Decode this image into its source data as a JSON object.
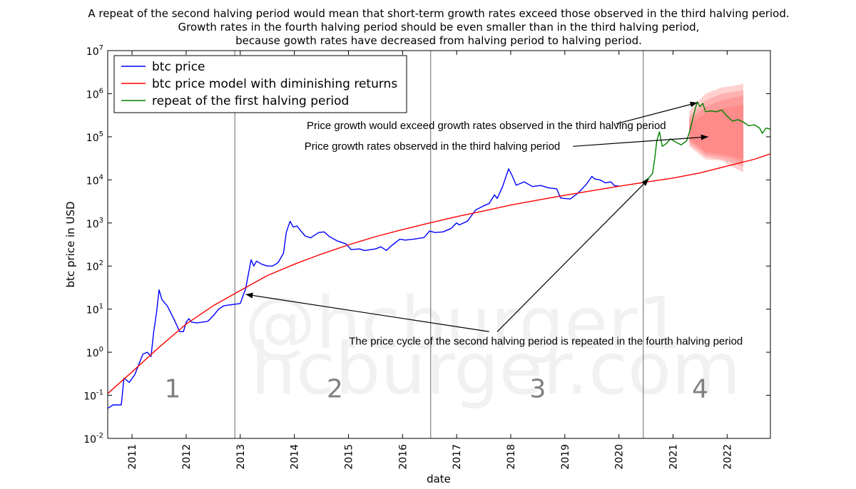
{
  "chart_data": {
    "type": "line",
    "title_lines": [
      "A repeat of the second halving period would mean that short-term growth rates exceed those observed in the third halving period.",
      "Growth rates in the fourth halving period should be even smaller than in the third halving period,",
      "because gowth rates have decreased from halving period to halving period."
    ],
    "xlabel": "date",
    "ylabel": "btc price in USD",
    "xlim": [
      2010.55,
      2022.8
    ],
    "y_scale": "log",
    "ylim_log10": [
      -2,
      7
    ],
    "x_ticks": [
      2011,
      2012,
      2013,
      2014,
      2015,
      2016,
      2017,
      2018,
      2019,
      2020,
      2021,
      2022
    ],
    "y_ticks": [
      {
        "exp": -2,
        "base": "10",
        "sup": "-2"
      },
      {
        "exp": -1,
        "base": "10",
        "sup": "-1"
      },
      {
        "exp": 0,
        "base": "10",
        "sup": "0"
      },
      {
        "exp": 1,
        "base": "10",
        "sup": "1"
      },
      {
        "exp": 2,
        "base": "10",
        "sup": "2"
      },
      {
        "exp": 3,
        "base": "10",
        "sup": "3"
      },
      {
        "exp": 4,
        "base": "10",
        "sup": "4"
      },
      {
        "exp": 5,
        "base": "10",
        "sup": "5"
      },
      {
        "exp": 6,
        "base": "10",
        "sup": "6"
      },
      {
        "exp": 7,
        "base": "10",
        "sup": "7"
      }
    ],
    "legend": [
      {
        "label": "btc price",
        "color": "#0000ff"
      },
      {
        "label": "btc price model with diminishing returns",
        "color": "#ff0000"
      },
      {
        "label": "repeat of the first halving period",
        "color": "#008000"
      }
    ],
    "legend_position": "top-left",
    "halving_lines": [
      2012.9,
      2016.52,
      2020.45
    ],
    "period_labels": [
      {
        "text": "1",
        "x": 2011.75
      },
      {
        "text": "2",
        "x": 2014.75
      },
      {
        "text": "3",
        "x": 2018.5
      },
      {
        "text": "4",
        "x": 2021.5
      }
    ],
    "period_label_y": 0.09,
    "series": [
      {
        "name": "btc price",
        "color": "#0000ff",
        "points": [
          [
            2010.55,
            0.05
          ],
          [
            2010.65,
            0.06
          ],
          [
            2010.8,
            0.06
          ],
          [
            2010.85,
            0.25
          ],
          [
            2010.95,
            0.2
          ],
          [
            2011.05,
            0.3
          ],
          [
            2011.12,
            0.5
          ],
          [
            2011.2,
            0.9
          ],
          [
            2011.28,
            1.0
          ],
          [
            2011.35,
            0.8
          ],
          [
            2011.4,
            3
          ],
          [
            2011.45,
            8
          ],
          [
            2011.5,
            28
          ],
          [
            2011.55,
            17
          ],
          [
            2011.6,
            14
          ],
          [
            2011.65,
            12
          ],
          [
            2011.72,
            8
          ],
          [
            2011.8,
            5
          ],
          [
            2011.88,
            3
          ],
          [
            2011.95,
            3
          ],
          [
            2012.0,
            5
          ],
          [
            2012.05,
            6
          ],
          [
            2012.1,
            5
          ],
          [
            2012.2,
            4.8
          ],
          [
            2012.3,
            5
          ],
          [
            2012.4,
            5.2
          ],
          [
            2012.5,
            7
          ],
          [
            2012.6,
            10
          ],
          [
            2012.65,
            11
          ],
          [
            2012.7,
            12
          ],
          [
            2012.8,
            12.5
          ],
          [
            2012.9,
            13
          ],
          [
            2013.0,
            13.5
          ],
          [
            2013.1,
            30
          ],
          [
            2013.2,
            140
          ],
          [
            2013.25,
            100
          ],
          [
            2013.3,
            130
          ],
          [
            2013.4,
            110
          ],
          [
            2013.5,
            100
          ],
          [
            2013.6,
            100
          ],
          [
            2013.7,
            120
          ],
          [
            2013.8,
            200
          ],
          [
            2013.85,
            600
          ],
          [
            2013.92,
            1100
          ],
          [
            2013.98,
            800
          ],
          [
            2014.05,
            850
          ],
          [
            2014.1,
            700
          ],
          [
            2014.2,
            500
          ],
          [
            2014.3,
            450
          ],
          [
            2014.45,
            600
          ],
          [
            2014.55,
            620
          ],
          [
            2014.65,
            480
          ],
          [
            2014.8,
            380
          ],
          [
            2014.95,
            330
          ],
          [
            2015.05,
            240
          ],
          [
            2015.2,
            250
          ],
          [
            2015.3,
            230
          ],
          [
            2015.5,
            250
          ],
          [
            2015.6,
            280
          ],
          [
            2015.7,
            230
          ],
          [
            2015.8,
            300
          ],
          [
            2015.95,
            420
          ],
          [
            2016.05,
            400
          ],
          [
            2016.2,
            420
          ],
          [
            2016.4,
            460
          ],
          [
            2016.5,
            650
          ],
          [
            2016.6,
            600
          ],
          [
            2016.75,
            620
          ],
          [
            2016.9,
            750
          ],
          [
            2017.0,
            1000
          ],
          [
            2017.05,
            900
          ],
          [
            2017.2,
            1100
          ],
          [
            2017.35,
            2000
          ],
          [
            2017.5,
            2500
          ],
          [
            2017.6,
            2800
          ],
          [
            2017.7,
            4500
          ],
          [
            2017.75,
            3700
          ],
          [
            2017.85,
            7000
          ],
          [
            2017.96,
            18000
          ],
          [
            2018.02,
            13000
          ],
          [
            2018.1,
            7500
          ],
          [
            2018.25,
            9000
          ],
          [
            2018.4,
            7000
          ],
          [
            2018.55,
            7400
          ],
          [
            2018.7,
            6500
          ],
          [
            2018.85,
            6200
          ],
          [
            2018.92,
            3800
          ],
          [
            2019.0,
            3700
          ],
          [
            2019.1,
            3600
          ],
          [
            2019.25,
            5000
          ],
          [
            2019.4,
            8000
          ],
          [
            2019.5,
            12000
          ],
          [
            2019.55,
            10500
          ],
          [
            2019.65,
            10000
          ],
          [
            2019.75,
            8500
          ],
          [
            2019.85,
            9000
          ],
          [
            2019.92,
            7300
          ],
          [
            2020.0,
            7200
          ]
        ]
      },
      {
        "name": "btc price model with diminishing returns",
        "color": "#ff0000",
        "points": [
          [
            2010.55,
            0.11
          ],
          [
            2011.0,
            0.35
          ],
          [
            2011.5,
            1.3
          ],
          [
            2012.0,
            4.5
          ],
          [
            2012.5,
            12
          ],
          [
            2013.0,
            27
          ],
          [
            2013.5,
            60
          ],
          [
            2014.0,
            110
          ],
          [
            2014.5,
            190
          ],
          [
            2015.0,
            310
          ],
          [
            2015.5,
            480
          ],
          [
            2016.0,
            700
          ],
          [
            2016.5,
            1000
          ],
          [
            2017.0,
            1400
          ],
          [
            2017.5,
            1900
          ],
          [
            2018.0,
            2600
          ],
          [
            2018.5,
            3400
          ],
          [
            2019.0,
            4400
          ],
          [
            2019.5,
            5600
          ],
          [
            2020.0,
            7100
          ],
          [
            2020.5,
            8900
          ],
          [
            2021.0,
            11000
          ],
          [
            2021.5,
            14500
          ],
          [
            2022.0,
            21000
          ],
          [
            2022.5,
            30000
          ],
          [
            2022.8,
            40000
          ]
        ]
      },
      {
        "name": "repeat of the first halving period",
        "color": "#008000",
        "points": [
          [
            2020.45,
            9000
          ],
          [
            2020.55,
            11000
          ],
          [
            2020.62,
            14000
          ],
          [
            2020.66,
            30000
          ],
          [
            2020.7,
            80000
          ],
          [
            2020.75,
            130000
          ],
          [
            2020.8,
            60000
          ],
          [
            2020.88,
            70000
          ],
          [
            2020.95,
            90000
          ],
          [
            2021.05,
            75000
          ],
          [
            2021.15,
            65000
          ],
          [
            2021.25,
            80000
          ],
          [
            2021.32,
            150000
          ],
          [
            2021.4,
            400000
          ],
          [
            2021.45,
            650000
          ],
          [
            2021.5,
            500000
          ],
          [
            2021.55,
            600000
          ],
          [
            2021.6,
            380000
          ],
          [
            2021.7,
            400000
          ],
          [
            2021.8,
            380000
          ],
          [
            2021.9,
            420000
          ],
          [
            2022.0,
            300000
          ],
          [
            2022.1,
            230000
          ],
          [
            2022.2,
            250000
          ],
          [
            2022.3,
            220000
          ],
          [
            2022.4,
            180000
          ],
          [
            2022.5,
            190000
          ],
          [
            2022.6,
            160000
          ],
          [
            2022.65,
            120000
          ],
          [
            2022.72,
            160000
          ],
          [
            2022.8,
            150000
          ]
        ]
      }
    ],
    "fan_x": [
      2021.3,
      2021.6,
      2021.9,
      2022.1,
      2022.3
    ],
    "fan_bands": [
      {
        "upper": [
          400000,
          1000000,
          1400000,
          1500000,
          1700000
        ],
        "lower": [
          60000,
          30000,
          28000,
          20000,
          15000
        ]
      },
      {
        "upper": [
          300000,
          700000,
          1000000,
          1100000,
          1200000
        ],
        "lower": [
          70000,
          35000,
          30000,
          25000,
          20000
        ]
      },
      {
        "upper": [
          250000,
          500000,
          700000,
          800000,
          900000
        ],
        "lower": [
          80000,
          40000,
          35000,
          30000,
          25000
        ]
      },
      {
        "upper": [
          200000,
          350000,
          450000,
          500000,
          550000
        ],
        "lower": [
          90000,
          45000,
          40000,
          35000,
          30000
        ]
      }
    ],
    "fan_color": "#ff6666",
    "annotations": [
      {
        "text": "Price growth would exceed growth rates observed in the third halving period",
        "text_x": 2017.55,
        "text_y": 150000,
        "arrow_start": [
          2019.95,
          200000
        ],
        "arrow_end": [
          2021.45,
          620000
        ]
      },
      {
        "text": "Price growth rates observed in the third halving period",
        "text_x": 2016.55,
        "text_y": 50000,
        "arrow_start": [
          2019.15,
          60000
        ],
        "arrow_end": [
          2021.65,
          100000
        ]
      },
      {
        "text": "The price cycle of the second halving period is repeated in the fourth halving period",
        "text_x": 2018.65,
        "text_y": 1.5,
        "arrow_start": [
          2017.6,
          3.0
        ],
        "arrow_end": [
          2013.1,
          22
        ]
      },
      {
        "text": "",
        "text_x": 2018.65,
        "text_y": 1.5,
        "arrow_start": [
          2017.75,
          3.0
        ],
        "arrow_end": [
          2020.55,
          10500
        ]
      }
    ],
    "watermark_lines": [
      "@hcburger1",
      "hcburger.com"
    ]
  }
}
